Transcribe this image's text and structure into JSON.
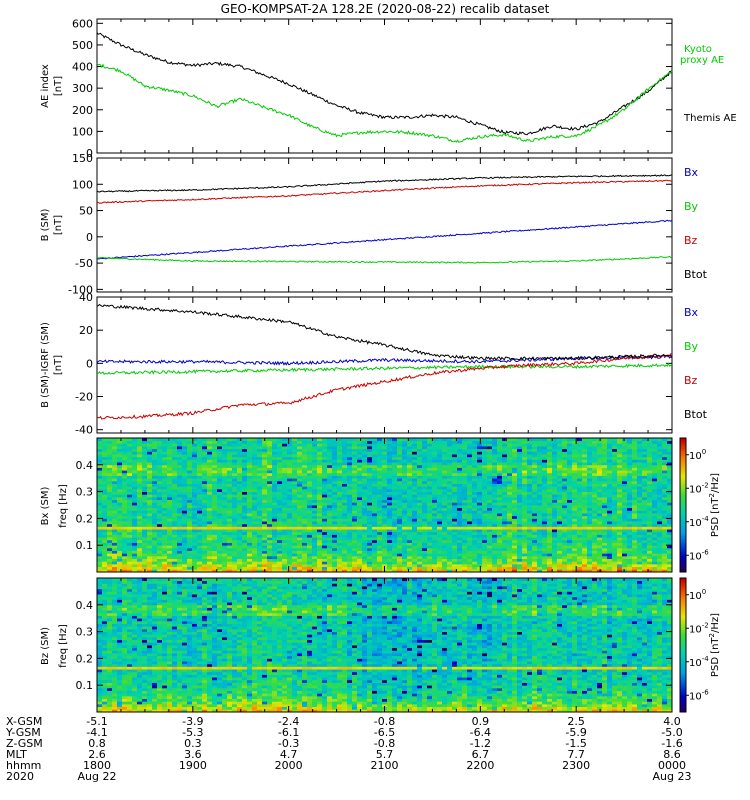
{
  "title": "GEO-KOMPSAT-2A 128.2E (2020-08-22) recalib dataset",
  "chart_data": [
    {
      "type": "line",
      "panel": "ae",
      "ylabel": "AE index",
      "yunit": "[nT]",
      "ylim": [
        0,
        620
      ],
      "yticks": [
        "600",
        "500",
        "400",
        "300",
        "200",
        "100",
        "0"
      ],
      "x_hours": [
        0,
        0.25,
        0.5,
        0.75,
        1,
        1.25,
        1.5,
        1.75,
        2,
        2.25,
        2.5,
        2.75,
        3,
        3.25,
        3.5,
        3.75,
        4,
        4.25,
        4.5,
        4.75,
        5,
        5.25,
        5.5,
        5.75,
        6
      ],
      "series": [
        {
          "name": "Themis AE",
          "color": "#000000",
          "values": [
            555,
            500,
            455,
            420,
            405,
            415,
            400,
            360,
            320,
            270,
            220,
            185,
            165,
            165,
            175,
            165,
            130,
            95,
            90,
            125,
            110,
            145,
            215,
            285,
            380
          ]
        },
        {
          "name": "Kyoto proxy AE",
          "color": "#00cc00",
          "values": [
            410,
            380,
            310,
            290,
            265,
            215,
            250,
            210,
            175,
            120,
            80,
            95,
            100,
            95,
            80,
            55,
            75,
            85,
            55,
            75,
            80,
            130,
            200,
            295,
            380
          ]
        }
      ]
    },
    {
      "type": "line",
      "panel": "b_sm",
      "ylabel": "B (SM)",
      "yunit": "[nT]",
      "ylim": [
        -105,
        150
      ],
      "yticks": [
        "150",
        "100",
        "50",
        "0",
        "-50",
        "-100"
      ],
      "series": [
        {
          "name": "Bx",
          "color": "#0000cc",
          "x_hours": [
            0,
            6
          ],
          "values": [
            -42,
            31
          ]
        },
        {
          "name": "By",
          "color": "#00cc00",
          "x_hours": [
            0,
            1,
            2,
            3,
            4,
            5,
            6
          ],
          "values": [
            -40,
            -46,
            -47,
            -48,
            -49,
            -46,
            -38
          ]
        },
        {
          "name": "Bz",
          "color": "#cc0000",
          "x_hours": [
            0,
            1,
            2,
            3,
            4,
            5,
            6
          ],
          "values": [
            65,
            71,
            78,
            88,
            97,
            103,
            107
          ]
        },
        {
          "name": "Btot",
          "color": "#000000",
          "x_hours": [
            0,
            1,
            2,
            3,
            4,
            5,
            6
          ],
          "values": [
            86,
            89,
            95,
            106,
            112,
            115,
            117
          ]
        }
      ]
    },
    {
      "type": "line",
      "panel": "b_minus_igrf",
      "ylabel": "B (SM)-IGRF (SM)",
      "yunit": "[nT]",
      "ylim": [
        -42,
        40
      ],
      "yticks": [
        "40",
        "20",
        "0",
        "-20",
        "-40"
      ],
      "series": [
        {
          "name": "Bx",
          "color": "#0000cc",
          "x_hours": [
            0,
            1,
            2,
            3,
            4,
            5,
            6
          ],
          "values": [
            1,
            1,
            0,
            2,
            1,
            3,
            4
          ]
        },
        {
          "name": "By",
          "color": "#00cc00",
          "x_hours": [
            0,
            1,
            2,
            3,
            4,
            5,
            6
          ],
          "values": [
            -6,
            -5,
            -4,
            -3,
            -2,
            -2,
            -1
          ]
        },
        {
          "name": "Bz",
          "color": "#cc0000",
          "x_hours": [
            0,
            0.5,
            1,
            1.5,
            2,
            2.5,
            3,
            3.5,
            4,
            4.5,
            5,
            5.5,
            6
          ],
          "values": [
            -33,
            -32,
            -30,
            -25,
            -24,
            -16,
            -11,
            -6,
            -3,
            -1,
            0,
            3,
            5
          ]
        },
        {
          "name": "Btot",
          "color": "#000000",
          "x_hours": [
            0,
            0.5,
            1,
            1.5,
            2,
            2.5,
            3,
            3.5,
            4,
            4.5,
            5,
            5.5,
            6
          ],
          "values": [
            35,
            33,
            31,
            28,
            25,
            16,
            11,
            5,
            3,
            3,
            3,
            4,
            5
          ]
        }
      ]
    },
    {
      "type": "heatmap",
      "panel": "bx_spectrogram",
      "ylabel": "Bx (SM)",
      "yunit": "freq [Hz]",
      "ylim": [
        0,
        0.5
      ],
      "yticks": [
        "0.4",
        "0.3",
        "0.2",
        "0.1"
      ],
      "colorbar": {
        "label": "PSD [nT^2/Hz]",
        "ticks": [
          "10^0",
          "10^-2",
          "10^-4",
          "10^-6"
        ],
        "log_range": [
          -7,
          1
        ]
      }
    },
    {
      "type": "heatmap",
      "panel": "bz_spectrogram",
      "ylabel": "Bz (SM)",
      "yunit": "freq [Hz]",
      "ylim": [
        0,
        0.5
      ],
      "yticks": [
        "0.4",
        "0.3",
        "0.2",
        "0.1"
      ],
      "colorbar": {
        "label": "PSD [nT^2/Hz]",
        "ticks": [
          "10^0",
          "10^-2",
          "10^-4",
          "10^-6"
        ],
        "log_range": [
          -7,
          1
        ]
      }
    }
  ],
  "ephemeris": {
    "row_labels": [
      "X-GSM",
      "Y-GSM",
      "Z-GSM",
      "MLT",
      "hhmm",
      "2020"
    ],
    "columns": [
      [
        "-5.1",
        "-4.1",
        "0.8",
        "2.6",
        "1800",
        "Aug 22"
      ],
      [
        "-3.9",
        "-5.3",
        "0.3",
        "3.6",
        "1900",
        ""
      ],
      [
        "-2.4",
        "-6.1",
        "-0.3",
        "4.7",
        "2000",
        ""
      ],
      [
        "-0.8",
        "-6.5",
        "-0.8",
        "5.7",
        "2100",
        ""
      ],
      [
        "0.9",
        "-6.4",
        "-1.2",
        "6.7",
        "2200",
        ""
      ],
      [
        "2.5",
        "-5.9",
        "-1.5",
        "7.7",
        "2300",
        ""
      ],
      [
        "4.0",
        "-5.0",
        "-1.6",
        "8.6",
        "0000",
        "Aug 23"
      ]
    ]
  }
}
